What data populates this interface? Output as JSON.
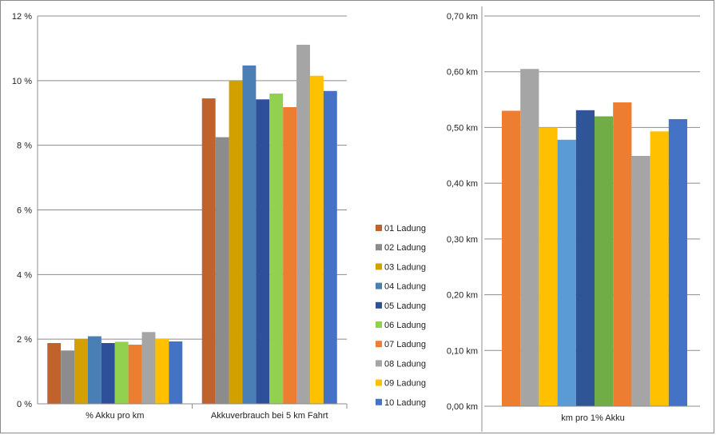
{
  "chart_data": [
    {
      "type": "bar",
      "categories": [
        "% Akku pro km",
        "Akkuverbrauch bei 5 km Fahrt"
      ],
      "ylim": [
        0,
        12
      ],
      "yticks": [
        "0 %",
        "2 %",
        "4 %",
        "6 %",
        "8 %",
        "10 %",
        "12 %"
      ],
      "grid": true,
      "legend": "right",
      "series": [
        {
          "name": "01 Ladung",
          "color": "#c0622b",
          "values": [
            1.88,
            9.45
          ]
        },
        {
          "name": "02 Ladung",
          "color": "#8c8c8c",
          "values": [
            1.65,
            8.25
          ]
        },
        {
          "name": "03 Ladung",
          "color": "#d4a000",
          "values": [
            2.0,
            10.0
          ]
        },
        {
          "name": "04 Ladung",
          "color": "#4a7fb5",
          "values": [
            2.09,
            10.47
          ]
        },
        {
          "name": "05 Ladung",
          "color": "#2e4f99",
          "values": [
            1.88,
            9.42
          ]
        },
        {
          "name": "06 Ladung",
          "color": "#92d050",
          "values": [
            1.92,
            9.6
          ]
        },
        {
          "name": "07 Ladung",
          "color": "#ed7d31",
          "values": [
            1.83,
            9.18
          ]
        },
        {
          "name": "08 Ladung",
          "color": "#a5a5a5",
          "values": [
            2.22,
            11.11
          ]
        },
        {
          "name": "09 Ladung",
          "color": "#ffc000",
          "values": [
            2.02,
            10.15
          ]
        },
        {
          "name": "10 Ladung",
          "color": "#4472c4",
          "values": [
            1.93,
            9.68
          ]
        }
      ]
    },
    {
      "type": "bar",
      "categories": [
        "km pro 1% Akku"
      ],
      "ylim": [
        0,
        0.7
      ],
      "yticks": [
        "0,00 km",
        "0,10 km",
        "0,20 km",
        "0,30 km",
        "0,40 km",
        "0,50 km",
        "0,60 km",
        "0,70 km"
      ],
      "grid": true,
      "series": [
        {
          "color": "#ed7d31",
          "values": [
            0.53
          ]
        },
        {
          "color": "#a5a5a5",
          "values": [
            0.605
          ]
        },
        {
          "color": "#ffc000",
          "values": [
            0.5
          ]
        },
        {
          "color": "#5b9bd5",
          "values": [
            0.478
          ]
        },
        {
          "color": "#2f5597",
          "values": [
            0.531
          ]
        },
        {
          "color": "#70ad47",
          "values": [
            0.52
          ]
        },
        {
          "color": "#ed7d31",
          "values": [
            0.545
          ]
        },
        {
          "color": "#a5a5a5",
          "values": [
            0.449
          ]
        },
        {
          "color": "#ffc000",
          "values": [
            0.493
          ]
        },
        {
          "color": "#4472c4",
          "values": [
            0.515
          ]
        }
      ]
    }
  ]
}
